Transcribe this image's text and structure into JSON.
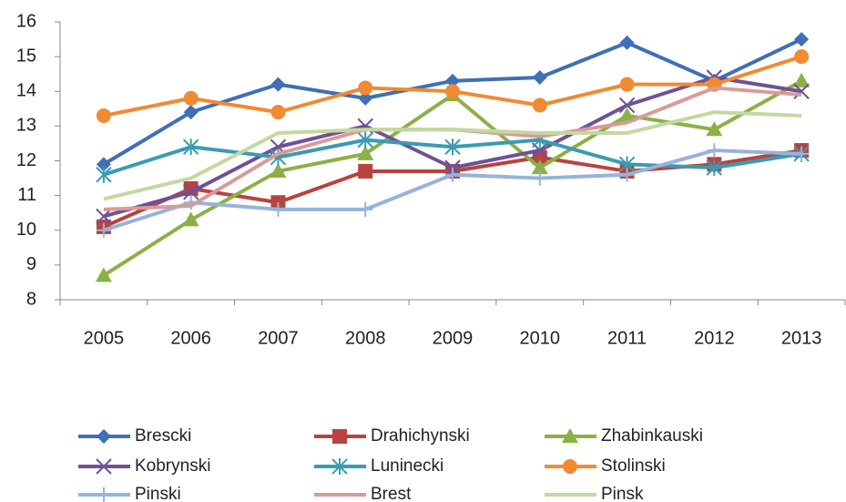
{
  "chart_data": {
    "type": "line",
    "categories": [
      "2005",
      "2006",
      "2007",
      "2008",
      "2009",
      "2010",
      "2011",
      "2012",
      "2013"
    ],
    "ylim": [
      8,
      16
    ],
    "yticks": [
      8,
      9,
      10,
      11,
      12,
      13,
      14,
      15,
      16
    ],
    "series": [
      {
        "name": "Brescki",
        "color": "#3f6fb5",
        "marker": "diamond",
        "values": [
          11.9,
          13.4,
          14.2,
          13.8,
          14.3,
          14.4,
          15.4,
          14.3,
          15.5
        ]
      },
      {
        "name": "Drahichynski",
        "color": "#b9433f",
        "marker": "square",
        "values": [
          10.1,
          11.2,
          10.8,
          11.7,
          11.7,
          12.1,
          11.7,
          11.9,
          12.3
        ]
      },
      {
        "name": "Zhabinkauski",
        "color": "#8cb045",
        "marker": "triangle",
        "values": [
          8.7,
          10.3,
          11.7,
          12.2,
          13.9,
          11.8,
          13.3,
          12.9,
          14.3
        ]
      },
      {
        "name": "Kobrynski",
        "color": "#6e5196",
        "marker": "x",
        "values": [
          10.4,
          11.1,
          12.4,
          13.0,
          11.8,
          12.3,
          13.6,
          14.4,
          14.0
        ]
      },
      {
        "name": "Lunineckі",
        "color": "#3a9bb3",
        "marker": "star",
        "values": [
          11.6,
          12.4,
          12.1,
          12.6,
          12.4,
          12.6,
          11.9,
          11.8,
          12.2
        ]
      },
      {
        "name": "Stolinski",
        "color": "#f08a33",
        "marker": "circle",
        "values": [
          13.3,
          13.8,
          13.4,
          14.1,
          14.0,
          13.6,
          14.2,
          14.2,
          15.0
        ]
      },
      {
        "name": "Pinski",
        "color": "#97b3d9",
        "marker": "plus",
        "values": [
          10.0,
          10.8,
          10.6,
          10.6,
          11.6,
          11.5,
          11.6,
          12.3,
          12.2
        ]
      },
      {
        "name": "Brest",
        "color": "#d99a98",
        "marker": "none",
        "values": [
          10.6,
          10.7,
          12.2,
          12.9,
          12.9,
          12.7,
          13.1,
          14.1,
          13.9
        ]
      },
      {
        "name": "Pinsk",
        "color": "#c4d8a0",
        "marker": "none",
        "values": [
          10.9,
          11.5,
          12.8,
          12.9,
          12.9,
          12.8,
          12.8,
          13.4,
          13.3
        ]
      }
    ]
  }
}
